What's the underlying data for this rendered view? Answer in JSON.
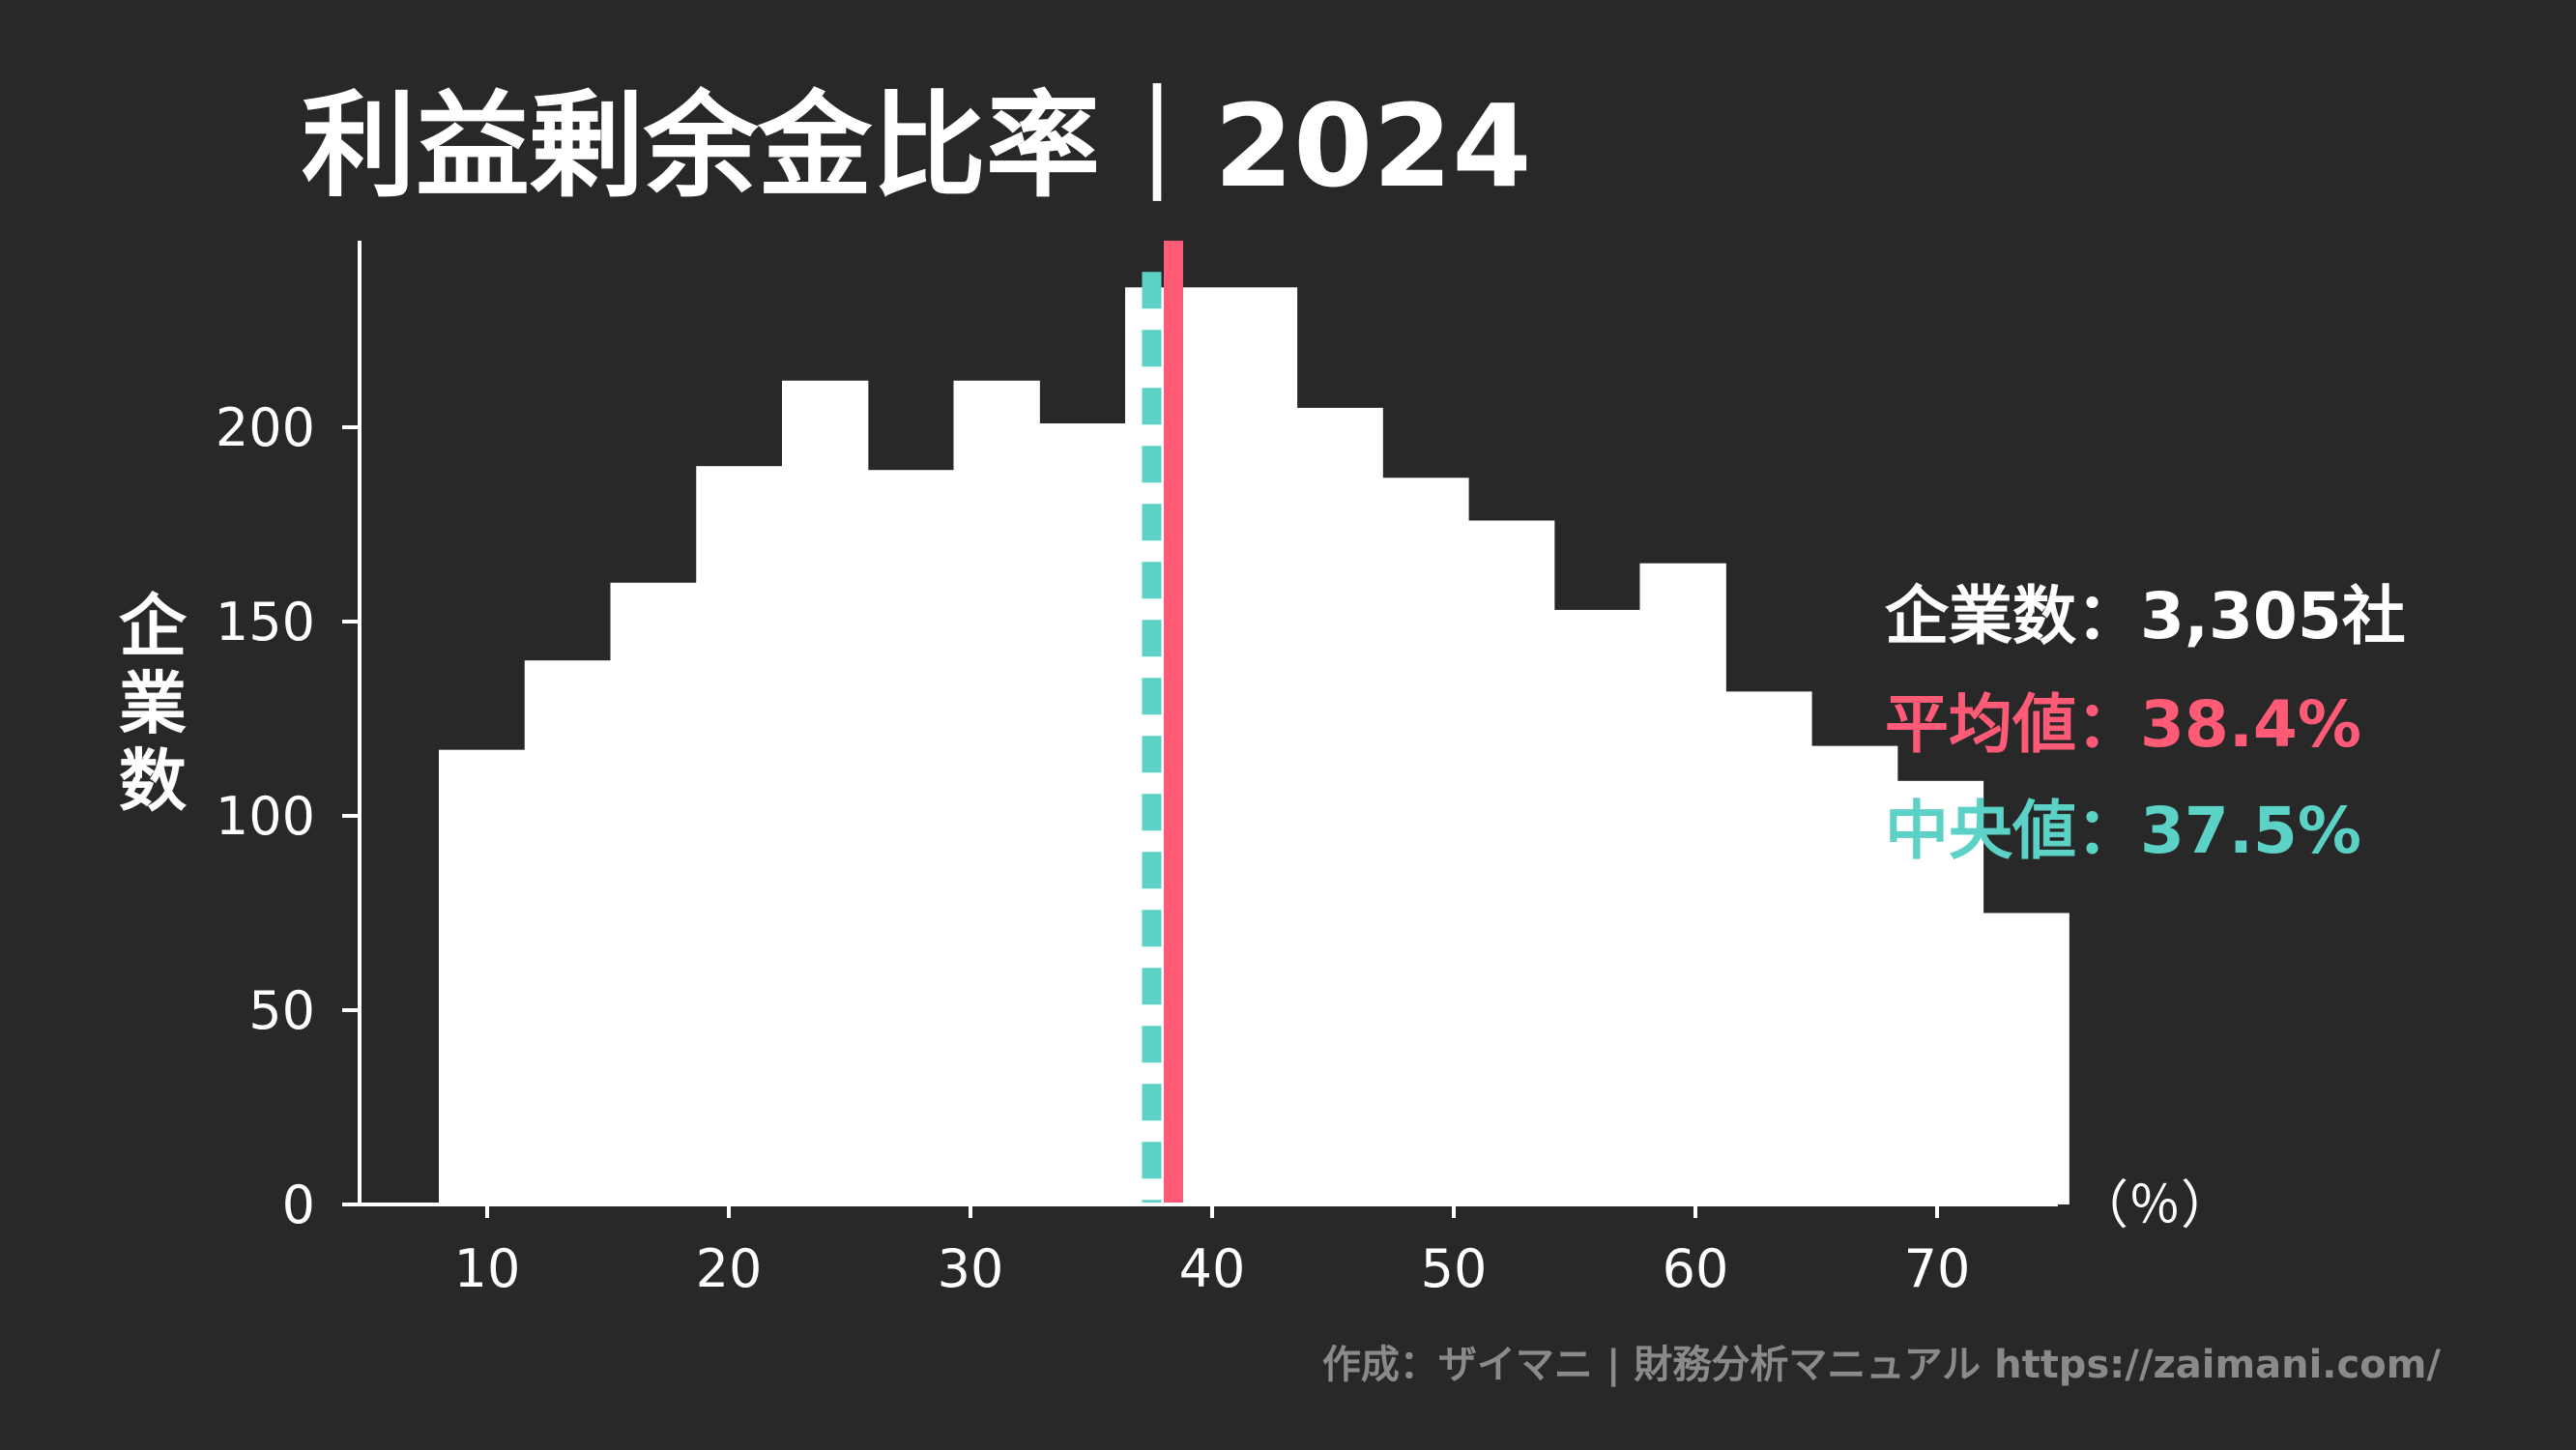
{
  "chart_data": {
    "type": "bar",
    "title": "利益剰余金比率｜2024",
    "ylabel": "企業数",
    "xunit": "（％）",
    "bin_width": 3.55,
    "bins_start": 8.0,
    "values": [
      117,
      140,
      160,
      190,
      212,
      189,
      212,
      201,
      236,
      236,
      205,
      187,
      176,
      153,
      165,
      132,
      118,
      109,
      75
    ],
    "xlim": [
      4,
      75
    ],
    "ylim": [
      0,
      248
    ],
    "xticks": [
      10,
      20,
      30,
      40,
      50,
      60,
      70
    ],
    "yticks": [
      0,
      50,
      100,
      150,
      200
    ],
    "mean": 38.4,
    "median": 37.5,
    "bar_color": "#ffffff",
    "mean_color": "#ff5b76",
    "median_color": "#5cd2c6",
    "stats": {
      "count_label": "企業数",
      "count_value": "3,305社",
      "mean_label": "平均値",
      "mean_value": "38.4%",
      "median_label": "中央値",
      "median_value": "37.5%",
      "sep": "："
    }
  },
  "credit": "作成：ザイマニ | 財務分析マニュアル https://zaimani.com/"
}
